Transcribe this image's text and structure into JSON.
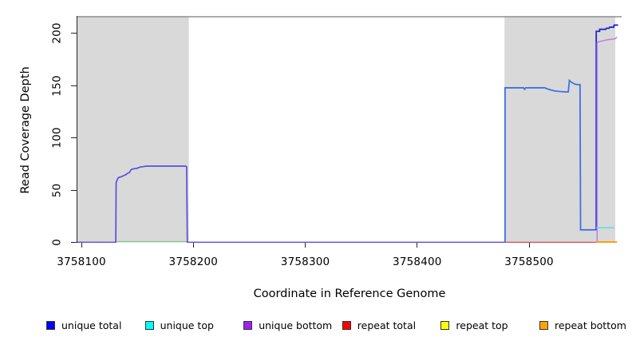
{
  "figure": {
    "x_axis_title": "Coordinate in Reference Genome",
    "y_axis_title": "Read Coverage Depth"
  },
  "chart_data": {
    "type": "line",
    "title": "",
    "xlabel": "Coordinate in Reference Genome",
    "ylabel": "Read Coverage Depth",
    "xlim": [
      3758096,
      3758583
    ],
    "ylim": [
      0,
      217
    ],
    "x_ticks": [
      3758100,
      3758200,
      3758300,
      3758400,
      3758500
    ],
    "y_ticks": [
      0,
      50,
      100,
      150,
      200
    ],
    "grid": false,
    "legend_position": "bottom",
    "plot_background": "#ffffff",
    "shaded_regions": [
      {
        "name": "shaded-region-left",
        "x0": 3758096,
        "x1": 3758196,
        "color": "#d9d9d9"
      },
      {
        "name": "shaded-region-right",
        "x0": 3758478,
        "x1": 3758577,
        "color": "#d9d9d9"
      }
    ],
    "top_boundary_line": {
      "depth": 216,
      "color": "#999999",
      "width": 1.6
    },
    "legend": [
      {
        "label": "unique total",
        "color": "#0000ff"
      },
      {
        "label": "unique top",
        "color": "#00ffff"
      },
      {
        "label": "unique bottom",
        "color": "#a020f0"
      },
      {
        "label": "repeat total",
        "color": "#ff0000"
      },
      {
        "label": "repeat top",
        "color": "#ffff00"
      },
      {
        "label": "repeat bottom",
        "color": "#ffa500"
      }
    ],
    "series": [
      {
        "name": "unique-top-left-zero-segment",
        "color": "#86c98a",
        "width": 1.4,
        "points": [
          [
            3758131,
            0.7
          ],
          [
            3758194,
            0.7
          ]
        ]
      },
      {
        "name": "repeat-total-zero-segment",
        "color": "#d94a60",
        "width": 1.6,
        "points": [
          [
            3758478.5,
            0
          ],
          [
            3758560,
            0
          ]
        ]
      },
      {
        "name": "unique-baseline-and-left-peak",
        "color": "#5b4edc",
        "width": 1.7,
        "points": [
          [
            3758096,
            0
          ],
          [
            3758130.7,
            0
          ],
          [
            3758131,
            57
          ],
          [
            3758132,
            60
          ],
          [
            3758133,
            62
          ],
          [
            3758136,
            63
          ],
          [
            3758138,
            64
          ],
          [
            3758140,
            65
          ],
          [
            3758141,
            66
          ],
          [
            3758143,
            67
          ],
          [
            3758144,
            69
          ],
          [
            3758145,
            70
          ],
          [
            3758147,
            70.5
          ],
          [
            3758150,
            71
          ],
          [
            3758152,
            72
          ],
          [
            3758155,
            72.5
          ],
          [
            3758158,
            73
          ],
          [
            3758193,
            73
          ],
          [
            3758194,
            72.5
          ],
          [
            3758194.6,
            0
          ],
          [
            3758478.5,
            0
          ]
        ]
      },
      {
        "name": "unique-total-middle-block",
        "color": "#4070e0",
        "width": 1.8,
        "points": [
          [
            3758478.5,
            0
          ],
          [
            3758478.5,
            148
          ],
          [
            3758495,
            148
          ],
          [
            3758496,
            146.5
          ],
          [
            3758497,
            148
          ],
          [
            3758514,
            148
          ],
          [
            3758516,
            147
          ],
          [
            3758519,
            146
          ],
          [
            3758523,
            145
          ],
          [
            3758527,
            144.5
          ],
          [
            3758533,
            144
          ],
          [
            3758535,
            144
          ],
          [
            3758536,
            155
          ],
          [
            3758537,
            154
          ],
          [
            3758539,
            152.5
          ],
          [
            3758541,
            151.5
          ],
          [
            3758543,
            151
          ],
          [
            3758545.5,
            151
          ],
          [
            3758546,
            12
          ],
          [
            3758560,
            12
          ]
        ]
      },
      {
        "name": "unique-total-right-peak",
        "color": "#2323cf",
        "width": 1.8,
        "points": [
          [
            3758560,
            12
          ],
          [
            3758560,
            202
          ],
          [
            3758563,
            202
          ],
          [
            3758563,
            204
          ],
          [
            3758568.5,
            204
          ],
          [
            3758569,
            205
          ],
          [
            3758571.5,
            205
          ],
          [
            3758572,
            206
          ],
          [
            3758575.5,
            206
          ],
          [
            3758576,
            208
          ],
          [
            3758579.5,
            208
          ]
        ]
      },
      {
        "name": "unique-bottom-right-peak",
        "color": "#b285e3",
        "width": 1.5,
        "points": [
          [
            3758560.8,
            0
          ],
          [
            3758560.8,
            191
          ],
          [
            3758562,
            192
          ],
          [
            3758566,
            193
          ],
          [
            3758570,
            194
          ],
          [
            3758574,
            194.5
          ],
          [
            3758577,
            195
          ],
          [
            3758578.5,
            196.5
          ]
        ]
      },
      {
        "name": "unique-top-right-segment",
        "color": "#63d9ee",
        "width": 1.6,
        "points": [
          [
            3758560,
            14
          ],
          [
            3758576,
            14
          ]
        ]
      },
      {
        "name": "repeat-bottom-zero-segment",
        "color": "#ff9d0a",
        "width": 2.0,
        "points": [
          [
            3758560,
            0.4
          ],
          [
            3758578.5,
            0.4
          ]
        ]
      }
    ]
  }
}
